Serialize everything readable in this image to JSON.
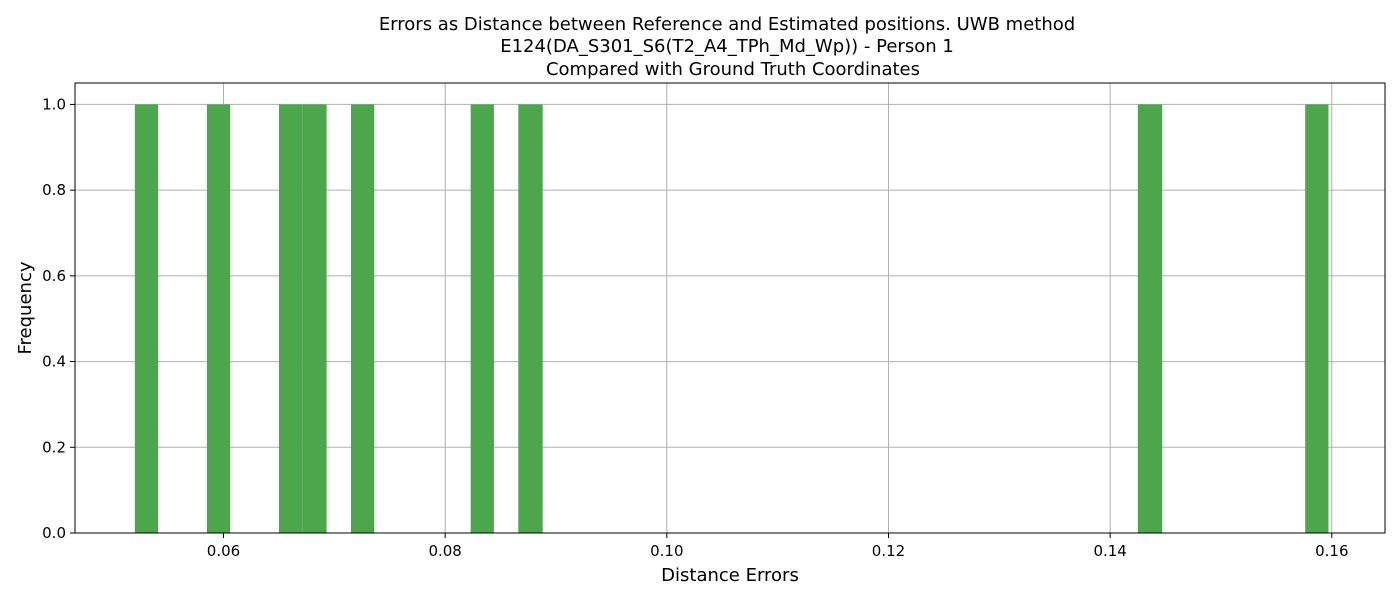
{
  "chart_data": {
    "type": "bar",
    "title_lines": [
      "Errors as Distance between Reference and Estimated positions. UWB method",
      "E124(DA_S301_S6(T2_A4_TPh_Md_Wp)) - Person 1",
      "Compared with Ground Truth Coordinates"
    ],
    "xlabel": "Distance Errors",
    "ylabel": "Frequency",
    "xlim": [
      0.0466,
      0.1648
    ],
    "ylim": [
      0,
      1.05
    ],
    "xticks": [
      0.06,
      0.08,
      0.1,
      0.12,
      0.14,
      0.16
    ],
    "xtick_labels": [
      "0.06",
      "0.08",
      "0.10",
      "0.12",
      "0.14",
      "0.16"
    ],
    "yticks": [
      0.0,
      0.2,
      0.4,
      0.6,
      0.8,
      1.0
    ],
    "ytick_labels": [
      "0.0",
      "0.2",
      "0.4",
      "0.6",
      "0.8",
      "1.0"
    ],
    "grid": true,
    "bar_color": "#4ca64c",
    "bins": [
      {
        "x0": 0.052,
        "x1": 0.0541,
        "count": 1
      },
      {
        "x0": 0.0585,
        "x1": 0.0606,
        "count": 1
      },
      {
        "x0": 0.065,
        "x1": 0.0671,
        "count": 1
      },
      {
        "x0": 0.0671,
        "x1": 0.0693,
        "count": 1
      },
      {
        "x0": 0.0715,
        "x1": 0.0736,
        "count": 1
      },
      {
        "x0": 0.0823,
        "x1": 0.0844,
        "count": 1
      },
      {
        "x0": 0.0866,
        "x1": 0.0888,
        "count": 1
      },
      {
        "x0": 0.1425,
        "x1": 0.1447,
        "count": 1
      },
      {
        "x0": 0.1576,
        "x1": 0.1597,
        "count": 1
      }
    ]
  }
}
